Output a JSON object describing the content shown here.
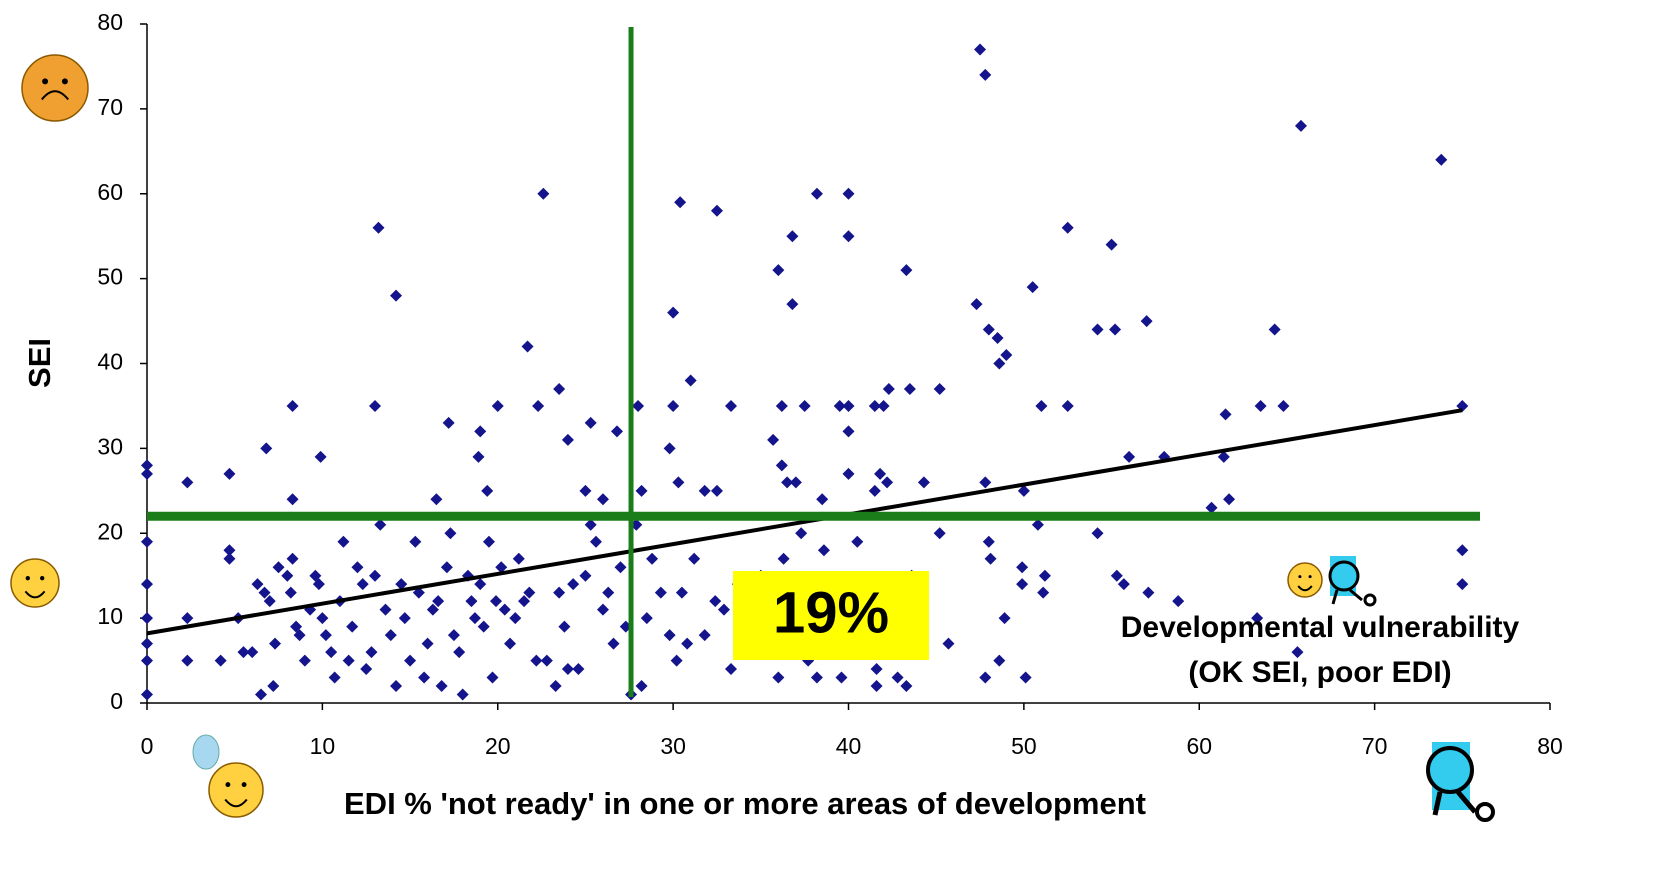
{
  "chart_data": {
    "type": "scatter",
    "x_label": "EDI % 'not ready' in one or more areas of development",
    "y_label": "SEI",
    "xlim": [
      0,
      80
    ],
    "xticks": [
      0,
      10,
      20,
      30,
      40,
      50,
      60,
      70,
      80
    ],
    "ylim": [
      0,
      80
    ],
    "yticks": [
      0,
      10,
      20,
      30,
      40,
      50,
      60,
      70,
      80
    ],
    "color": "#14148c",
    "x": [
      47.5,
      47.8,
      65.8,
      73.8,
      22.6,
      38.2,
      40,
      30.4,
      32.5,
      13.2,
      52.5,
      36.8,
      40,
      55,
      14.2,
      36,
      43.3,
      36.8,
      47.3,
      50.5,
      30,
      57,
      48,
      54.2,
      55.2,
      64.3,
      48.5,
      49,
      48.6,
      21.7,
      31,
      23.5,
      42.3,
      43.5,
      45.2,
      13,
      8.3,
      20,
      22.3,
      28,
      30,
      33.3,
      36.2,
      37.5,
      39.5,
      40,
      41.5,
      42,
      51,
      52.5,
      63.5,
      64.8,
      75,
      61.5,
      17.2,
      25.3,
      35.7,
      24,
      19,
      26.8,
      40,
      6.8,
      9.9,
      18.9,
      29.8,
      56,
      58,
      61.4,
      0,
      0,
      2.3,
      4.7,
      36.2,
      36.5,
      37,
      41.8,
      42.2,
      40,
      44.3,
      30.3,
      31.8,
      32.5,
      25,
      26,
      19.4,
      8.3,
      16.5,
      28.2,
      38.5,
      47.8,
      50,
      61.7,
      60.7,
      41.5,
      0,
      0,
      0,
      0,
      0,
      0,
      2.3,
      2.3,
      4.2,
      4.7,
      4.7,
      5.2,
      5.5,
      6,
      6.3,
      6.5,
      6.7,
      7,
      7.2,
      7.3,
      7.5,
      8,
      8.3,
      8.2,
      8.5,
      8.7,
      9,
      9.3,
      9.8,
      9.6,
      10,
      10.2,
      10.5,
      10.7,
      11,
      11.2,
      11.5,
      11.7,
      12,
      12.3,
      12.5,
      12.8,
      13,
      13.3,
      13.6,
      13.9,
      14.2,
      14.5,
      14.7,
      15,
      15.3,
      15.5,
      15.8,
      16,
      16.3,
      16.6,
      16.8,
      17.1,
      17.3,
      17.5,
      17.8,
      18,
      18.3,
      18.5,
      18.7,
      19,
      19.2,
      19.5,
      19.7,
      19.9,
      20.2,
      20.4,
      20.7,
      21,
      21.2,
      21.5,
      21.8,
      22.2,
      22.8,
      23.3,
      23.5,
      23.8,
      24,
      24.3,
      24.6,
      25,
      25.3,
      25.6,
      26,
      26.3,
      26.6,
      27,
      27.3,
      27.6,
      27.9,
      28.2,
      28.5,
      28.8,
      29.3,
      29.8,
      30.2,
      30.5,
      30.8,
      31.2,
      31.8,
      32.4,
      32.9,
      33.3,
      33.7,
      34.3,
      35,
      35.5,
      36,
      36.3,
      36.8,
      37.3,
      37.7,
      38.2,
      38.6,
      39.3,
      39.6,
      40.1,
      40.5,
      41,
      41.6,
      41.6,
      42,
      42.8,
      43,
      43.3,
      43.6,
      45.2,
      45.7,
      47.8,
      48,
      48.1,
      48.6,
      48.9,
      49.9,
      49.9,
      50.1,
      50.8,
      51.1,
      51.2,
      54.2,
      55.3,
      55.7,
      57.1,
      58.8,
      63.3,
      65.6,
      75,
      75
    ],
    "values": [
      77,
      74,
      68,
      64,
      60,
      60,
      60,
      59,
      58,
      56,
      56,
      55,
      55,
      54,
      48,
      51,
      51,
      47,
      47,
      49,
      46,
      45,
      44,
      44,
      44,
      44,
      43,
      41,
      40,
      42,
      38,
      37,
      37,
      37,
      37,
      35,
      35,
      35,
      35,
      35,
      35,
      35,
      35,
      35,
      35,
      35,
      35,
      35,
      35,
      35,
      35,
      35,
      35,
      34,
      33,
      33,
      31,
      31,
      32,
      32,
      32,
      30,
      29,
      29,
      30,
      29,
      29,
      29,
      28,
      27,
      26,
      27,
      28,
      26,
      26,
      27,
      26,
      27,
      26,
      26,
      25,
      25,
      25,
      24,
      25,
      24,
      24,
      25,
      24,
      26,
      25,
      24,
      23,
      25,
      19,
      14,
      10,
      7,
      5,
      1,
      10,
      5,
      5,
      18,
      17,
      10,
      6,
      6,
      14,
      1,
      13,
      12,
      2,
      7,
      16,
      15,
      17,
      13,
      9,
      8,
      5,
      11,
      14,
      15,
      10,
      8,
      6,
      3,
      12,
      19,
      5,
      9,
      16,
      14,
      4,
      6,
      15,
      21,
      11,
      8,
      2,
      14,
      10,
      5,
      19,
      13,
      3,
      7,
      11,
      12,
      2,
      16,
      20,
      8,
      6,
      1,
      15,
      12,
      10,
      14,
      9,
      19,
      3,
      12,
      16,
      11,
      7,
      10,
      17,
      12,
      13,
      5,
      5,
      2,
      13,
      9,
      4,
      14,
      4,
      15,
      21,
      19,
      11,
      13,
      7,
      16,
      9,
      1,
      21,
      2,
      10,
      17,
      13,
      8,
      5,
      13,
      7,
      17,
      8,
      12,
      11,
      4,
      14,
      12,
      15,
      10,
      3,
      17,
      12,
      20,
      5,
      3,
      18,
      8,
      3,
      11,
      19,
      13,
      4,
      2,
      9,
      3,
      6,
      2,
      15,
      20,
      7,
      3,
      19,
      17,
      5,
      10,
      16,
      14,
      3,
      21,
      13,
      15,
      20,
      15,
      14,
      13,
      12,
      10,
      6,
      18,
      14
    ],
    "trendline": {
      "x": [
        0,
        75
      ],
      "values": [
        8.2,
        34.5
      ],
      "color": "#000000"
    },
    "vline": 27.6,
    "hline": 22,
    "reference_color": "#1a7d1a",
    "annotations": [
      "19%",
      "Developmental vulnerability",
      "(OK SEI, poor EDI)"
    ]
  }
}
